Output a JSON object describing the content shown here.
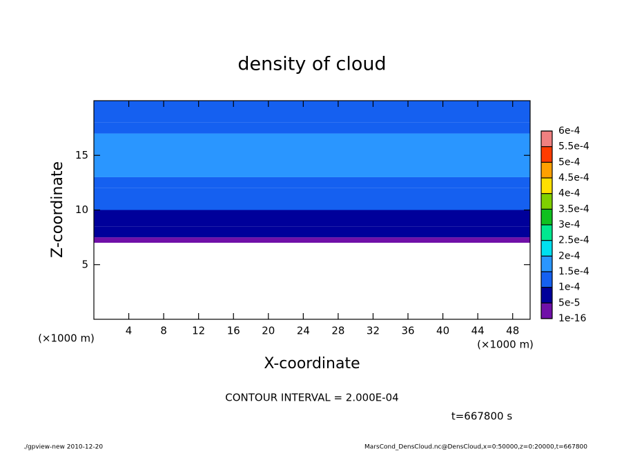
{
  "chart_data": {
    "type": "layered-contour",
    "title": "density of cloud",
    "xlabel": "X-coordinate",
    "ylabel": "Z-coordinate",
    "x_unit": "(×1000 m)",
    "xlim": [
      0,
      50
    ],
    "xticks": [
      4,
      8,
      12,
      16,
      20,
      24,
      28,
      32,
      36,
      40,
      44,
      48
    ],
    "ylim": [
      0,
      20
    ],
    "yticks": [
      5,
      10,
      15
    ],
    "ybins": [
      7,
      7.5,
      8.5,
      10,
      12,
      13,
      17,
      18,
      20
    ],
    "values": [
      3e-05,
      7e-05,
      9e-05,
      0.00011,
      0.00013,
      0.00016,
      0.00014,
      0.00012
    ],
    "levels": [
      {
        "value": 1e-16,
        "label": "1e-16"
      },
      {
        "value": 5e-05,
        "label": "5e-5"
      },
      {
        "value": 0.0001,
        "label": "1e-4"
      },
      {
        "value": 0.00015,
        "label": "1.5e-4"
      },
      {
        "value": 0.0002,
        "label": "2e-4"
      },
      {
        "value": 0.00025,
        "label": "2.5e-4"
      },
      {
        "value": 0.0003,
        "label": "3e-4"
      },
      {
        "value": 0.00035,
        "label": "3.5e-4"
      },
      {
        "value": 0.0004,
        "label": "4e-4"
      },
      {
        "value": 0.00045,
        "label": "4.5e-4"
      },
      {
        "value": 0.0005,
        "label": "5e-4"
      },
      {
        "value": 0.00055,
        "label": "5.5e-4"
      },
      {
        "value": 0.0006,
        "label": "6e-4"
      }
    ],
    "colors": [
      "#7010a8",
      "#00009a",
      "#1560f0",
      "#2a96ff",
      "#00e0f0",
      "#00e890",
      "#10c020",
      "#80d000",
      "#ffe000",
      "#ffa000",
      "#ff3c00",
      "#f08080"
    ],
    "annotation": "CONTOUR INTERVAL = 2.000E-04",
    "time_label": "t=667800 s",
    "footer_left": "./gpview-new   2010-12-20",
    "footer_right": "MarsCond_DensCloud.nc@DensCloud,x=0:50000,z=0:20000,t=667800"
  }
}
